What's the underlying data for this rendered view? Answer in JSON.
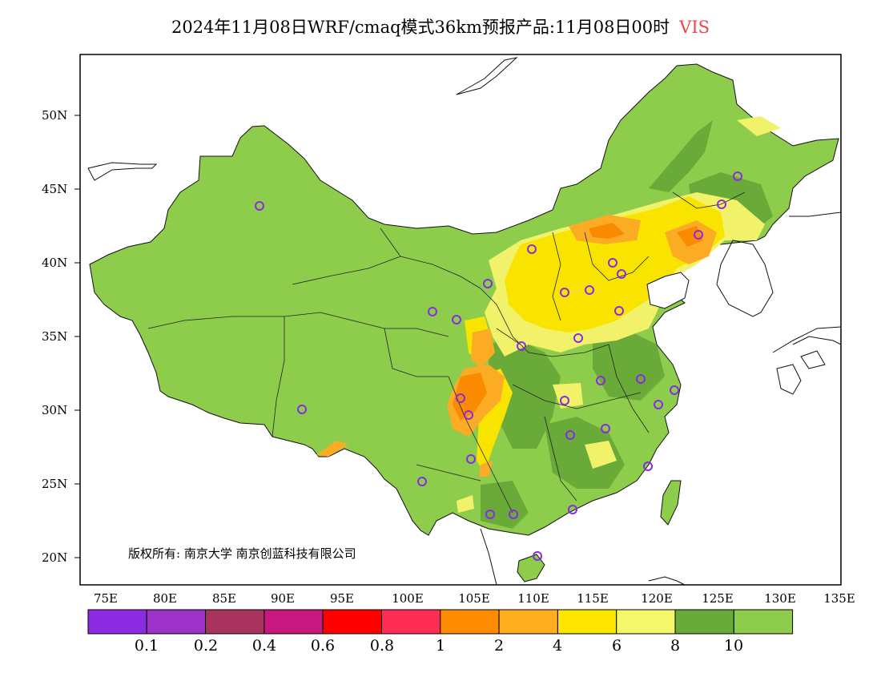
{
  "title": {
    "text": "2024年11月08日WRF/cmaq模式36km预报产品:11月08日00时",
    "variable": "VIS",
    "variable_color": "#e8464a"
  },
  "map": {
    "lat_labels": [
      "50N",
      "45N",
      "40N",
      "35N",
      "30N",
      "25N",
      "20N"
    ],
    "lon_labels": [
      "75E",
      "80E",
      "85E",
      "90E",
      "95E",
      "100E",
      "105E",
      "110E",
      "115E",
      "120E",
      "125E",
      "130E",
      "135E"
    ],
    "copyright": "版权所有: 南京大学  南京创蓝科技有限公司",
    "fill_colors": {
      "background_land": "#8ecc4c",
      "band_8_10": "#6aaa38",
      "band_6_8": "#f2f26a",
      "band_4_6": "#f9e400",
      "band_2_4": "#fbac24",
      "band_1_2": "#fa8a00"
    },
    "station_marker_color": "#8a2be2"
  },
  "colorbar": {
    "colors": [
      "#8b2be2",
      "#9c32c8",
      "#a9335f",
      "#c8187f",
      "#fe0000",
      "#fe2d55",
      "#fe8b00",
      "#ffae20",
      "#fee500",
      "#f4f86a",
      "#6aaa38",
      "#8ecc4c"
    ],
    "labels": [
      "0.1",
      "0.2",
      "0.4",
      "0.6",
      "0.8",
      "1",
      "2",
      "4",
      "6",
      "8",
      "10"
    ]
  }
}
